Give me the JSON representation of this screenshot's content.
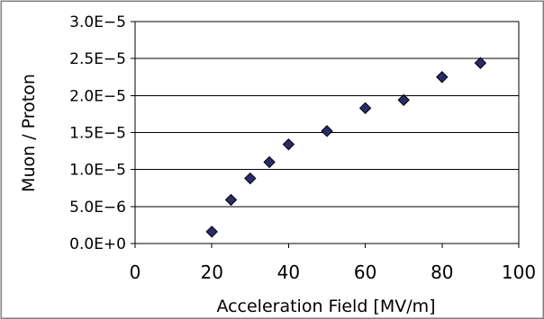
{
  "chart_data": {
    "type": "scatter",
    "title": "",
    "xlabel": "Acceleration Field [MV/m]",
    "ylabel": "Muon / Proton",
    "xlim": [
      0,
      100
    ],
    "ylim": [
      0,
      3e-05
    ],
    "xticks": [
      0,
      20,
      40,
      60,
      80,
      100
    ],
    "xtick_labels": [
      "0",
      "20",
      "40",
      "60",
      "80",
      "100"
    ],
    "yticks": [
      0,
      5e-06,
      1e-05,
      1.5e-05,
      2e-05,
      2.5e-05,
      3e-05
    ],
    "ytick_labels": [
      "0.0E+0",
      "5.0E−6",
      "1.0E−5",
      "1.5E−5",
      "2.0E−5",
      "2.5E−5",
      "3.0E−5"
    ],
    "grid": "horizontal",
    "legend": "none",
    "marker": "diamond",
    "marker_color": "#2b2b6b",
    "x": [
      20,
      25,
      30,
      35,
      40,
      50,
      60,
      70,
      80,
      90
    ],
    "y": [
      1.6e-06,
      5.9e-06,
      8.8e-06,
      1.1e-05,
      1.34e-05,
      1.52e-05,
      1.83e-05,
      1.94e-05,
      2.25e-05,
      2.44e-05
    ]
  }
}
